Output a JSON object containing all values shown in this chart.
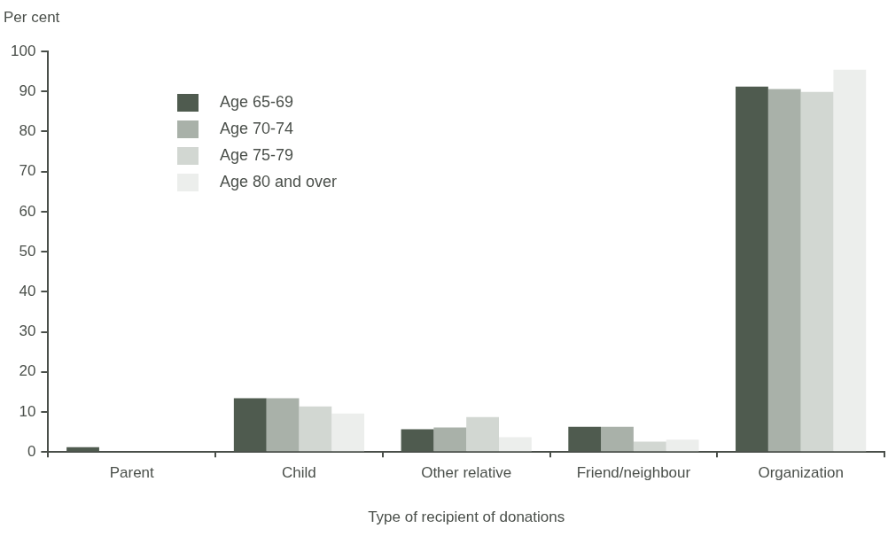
{
  "chart_data": {
    "type": "bar",
    "ylabel": "Per cent",
    "xlabel": "Type of recipient of donations",
    "categories": [
      "Parent",
      "Child",
      "Other relative",
      "Friend/neighbour",
      "Organization"
    ],
    "series": [
      {
        "name": "Age 65-69",
        "color": "#4f5b4f",
        "values": [
          1.2,
          13.4,
          5.7,
          6.3,
          91.2
        ]
      },
      {
        "name": "Age 70-74",
        "color": "#a9b1a9",
        "values": [
          0,
          13.4,
          6.1,
          6.3,
          90.6
        ]
      },
      {
        "name": "Age 75-79",
        "color": "#d2d7d2",
        "values": [
          0,
          11.4,
          8.7,
          2.6,
          89.9
        ]
      },
      {
        "name": "Age 80 and over",
        "color": "#eceeec",
        "values": [
          0,
          9.6,
          3.7,
          3.1,
          95.4
        ]
      }
    ],
    "ylim": [
      0,
      100
    ],
    "yticks": [
      0,
      10,
      20,
      30,
      40,
      50,
      60,
      70,
      80,
      90,
      100
    ],
    "grid": false,
    "legend": "top left"
  }
}
